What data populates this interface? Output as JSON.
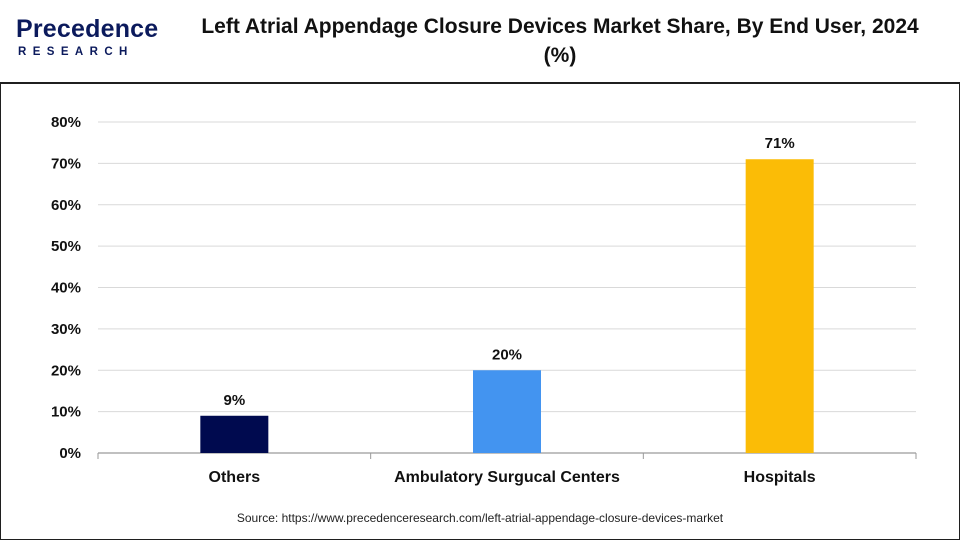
{
  "header": {
    "logo_main": "Precedence",
    "logo_sub": "RESEARCH",
    "title": "Left Atrial Appendage Closure Devices Market Share, By End User, 2024 (%)"
  },
  "source": "Source: https://www.precedenceresearch.com/left-atrial-appendage-closure-devices-market",
  "chart_data": {
    "type": "bar",
    "categories": [
      "Others",
      "Ambulatory Surgucal Centers",
      "Hospitals"
    ],
    "values": [
      9,
      20,
      71
    ],
    "data_labels": [
      "9%",
      "20%",
      "71%"
    ],
    "colors": [
      "#000a4f",
      "#4394f0",
      "#fbbc06"
    ],
    "yticks": [
      "0%",
      "10%",
      "20%",
      "30%",
      "40%",
      "50%",
      "60%",
      "70%",
      "80%"
    ],
    "ylim": [
      0,
      80
    ],
    "grid": true,
    "xlabel": "",
    "ylabel": ""
  }
}
